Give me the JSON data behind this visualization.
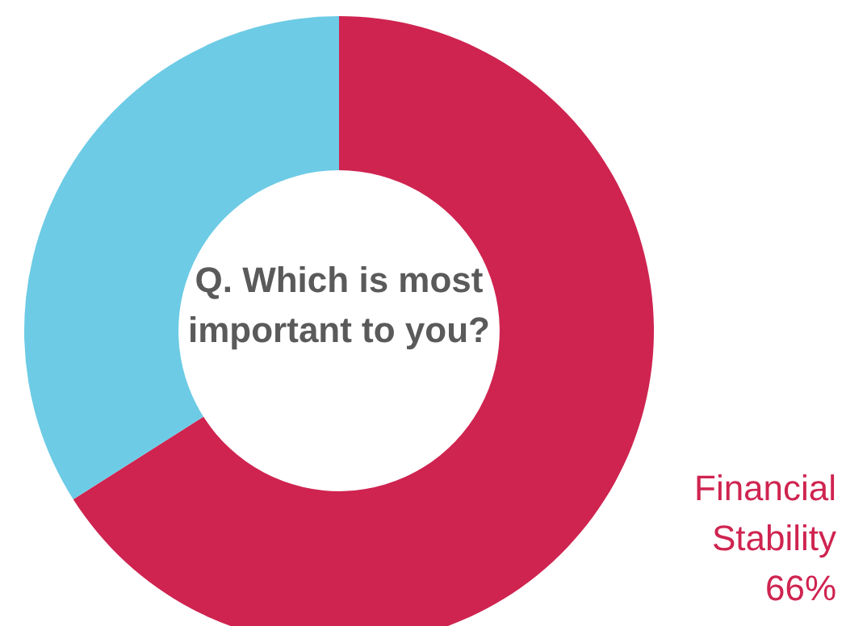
{
  "chart_data": {
    "type": "donut",
    "title": "Q. Which is most important to you?",
    "categories": [
      "Financial Stability",
      null
    ],
    "values": [
      66,
      34
    ],
    "value_labels": [
      "66%",
      null
    ],
    "colors": [
      "#cf2450",
      "#6dcbe5"
    ],
    "legend": false
  }
}
